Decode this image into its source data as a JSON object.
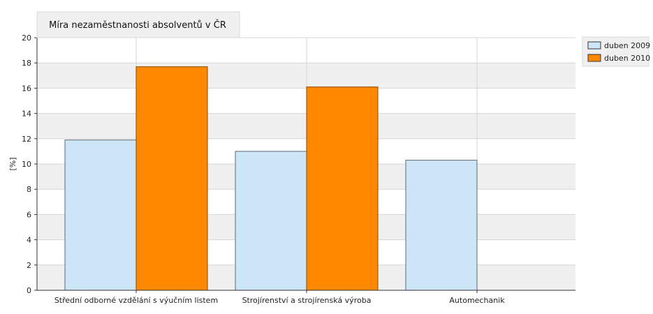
{
  "chart_data": {
    "type": "bar",
    "title": "Míra nezaměstnanosti absolventů v ČR",
    "xlabel": "",
    "ylabel": "[%]",
    "ylim": [
      0,
      20
    ],
    "yticks": [
      0,
      2,
      4,
      6,
      8,
      10,
      12,
      14,
      16,
      18,
      20
    ],
    "grid": true,
    "legend_position": "right",
    "categories": [
      "Střední odborné vzdělání s výučním listem",
      "Strojírenství a strojírenská výroba",
      "Automechanik"
    ],
    "series": [
      {
        "name": "duben 2009",
        "color": "#cce6f8",
        "stroke": "#5a6a78",
        "values": [
          11.9,
          11.0,
          10.3
        ]
      },
      {
        "name": "duben 2010",
        "color": "#ff8800",
        "stroke": "#8a4a00",
        "values": [
          17.7,
          16.1,
          null
        ]
      }
    ]
  }
}
